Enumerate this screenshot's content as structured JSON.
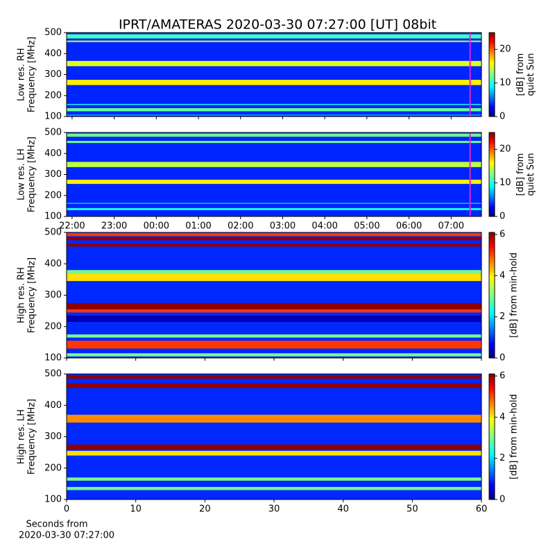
{
  "chart_data": [
    {
      "type": "heatmap",
      "title": "IPRT/AMATERAS 2020-03-30 07:27:00 [UT]   08bit",
      "ylabel": [
        "Low res. RH",
        "Frequency [MHz]"
      ],
      "ylim": [
        100,
        500
      ],
      "yticks": [
        100,
        200,
        300,
        400,
        500
      ],
      "xlim": [
        -2.13,
        7.72
      ],
      "time_marker": 7.45,
      "marker_color": "#e020e0",
      "clim": [
        0,
        25
      ],
      "cticks": [
        0,
        10,
        20
      ],
      "clabel": [
        "[dB] from",
        "quiet Sun"
      ],
      "colormap": "jet",
      "background_level": 4,
      "bands": [
        {
          "low": 472,
          "high": 492,
          "level": 11
        },
        {
          "low": 455,
          "high": 462,
          "level": 14
        },
        {
          "low": 340,
          "high": 365,
          "level": 15
        },
        {
          "low": 250,
          "high": 275,
          "level": 16
        },
        {
          "low": 155,
          "high": 160,
          "level": 10
        },
        {
          "low": 125,
          "high": 140,
          "level": 12
        },
        {
          "low": 104,
          "high": 110,
          "level": 7
        }
      ]
    },
    {
      "type": "heatmap",
      "ylabel": [
        "Low res. LH",
        "Frequency [MHz]"
      ],
      "ylim": [
        100,
        500
      ],
      "yticks": [
        100,
        200,
        300,
        400,
        500
      ],
      "xlim": [
        -2.13,
        7.72
      ],
      "time_marker": 7.45,
      "marker_color": "#e020e0",
      "xticks": [
        {
          "value": -2,
          "label": "22:00"
        },
        {
          "value": -1,
          "label": "23:00"
        },
        {
          "value": 0,
          "label": "00:00"
        },
        {
          "value": 1,
          "label": "01:00"
        },
        {
          "value": 2,
          "label": "02:00"
        },
        {
          "value": 3,
          "label": "03:00"
        },
        {
          "value": 4,
          "label": "04:00"
        },
        {
          "value": 5,
          "label": "05:00"
        },
        {
          "value": 6,
          "label": "06:00"
        },
        {
          "value": 7,
          "label": "07:00"
        }
      ],
      "clim": [
        0,
        25
      ],
      "cticks": [
        0,
        10,
        20
      ],
      "clabel": [
        "[dB] from",
        "quiet Sun"
      ],
      "colormap": "jet",
      "background_level": 4,
      "bands": [
        {
          "low": 480,
          "high": 495,
          "level": 12
        },
        {
          "low": 450,
          "high": 460,
          "level": 12
        },
        {
          "low": 335,
          "high": 360,
          "level": 14
        },
        {
          "low": 255,
          "high": 275,
          "level": 16
        },
        {
          "low": 160,
          "high": 165,
          "level": 8
        },
        {
          "low": 130,
          "high": 140,
          "level": 10
        }
      ]
    },
    {
      "type": "heatmap",
      "ylabel": [
        "High res. RH",
        "Frequency [MHz]"
      ],
      "ylim": [
        100,
        500
      ],
      "yticks": [
        100,
        200,
        300,
        400,
        500
      ],
      "xlim": [
        0,
        60
      ],
      "clim": [
        0,
        6.1
      ],
      "cticks": [
        0,
        2,
        4,
        6
      ],
      "clabel": [
        "[dB] from min-hold"
      ],
      "colormap": "jet",
      "background_level": 1,
      "bands": [
        {
          "low": 488,
          "high": 498,
          "level": 5
        },
        {
          "low": 475,
          "high": 485,
          "level": 6
        },
        {
          "low": 455,
          "high": 465,
          "level": 6
        },
        {
          "low": 370,
          "high": 380,
          "level": 3
        },
        {
          "low": 345,
          "high": 370,
          "level": 4
        },
        {
          "low": 255,
          "high": 275,
          "level": 6
        },
        {
          "low": 245,
          "high": 255,
          "level": 5
        },
        {
          "low": 215,
          "high": 235,
          "level": 0.3
        },
        {
          "low": 165,
          "high": 175,
          "level": 3
        },
        {
          "low": 130,
          "high": 155,
          "level": 5
        },
        {
          "low": 105,
          "high": 115,
          "level": 3
        }
      ]
    },
    {
      "type": "heatmap",
      "ylabel": [
        "High res. LH",
        "Frequency [MHz]"
      ],
      "ylim": [
        100,
        500
      ],
      "yticks": [
        100,
        200,
        300,
        400,
        500
      ],
      "xlim": [
        0,
        60
      ],
      "xticks": [
        0,
        10,
        20,
        30,
        40,
        50,
        60
      ],
      "xlabel": [
        "Seconds from",
        "2020-03-30 07:27:00"
      ],
      "clim": [
        0,
        6.1
      ],
      "cticks": [
        0,
        2,
        4,
        6
      ],
      "clabel": [
        "[dB] from min-hold"
      ],
      "colormap": "jet",
      "background_level": 1,
      "bands": [
        {
          "low": 485,
          "high": 495,
          "level": 6
        },
        {
          "low": 455,
          "high": 470,
          "level": 6
        },
        {
          "low": 345,
          "high": 370,
          "level": 4.5
        },
        {
          "low": 260,
          "high": 275,
          "level": 6
        },
        {
          "low": 240,
          "high": 255,
          "level": 4
        },
        {
          "low": 160,
          "high": 170,
          "level": 3
        },
        {
          "low": 130,
          "high": 140,
          "level": 3
        }
      ]
    }
  ]
}
